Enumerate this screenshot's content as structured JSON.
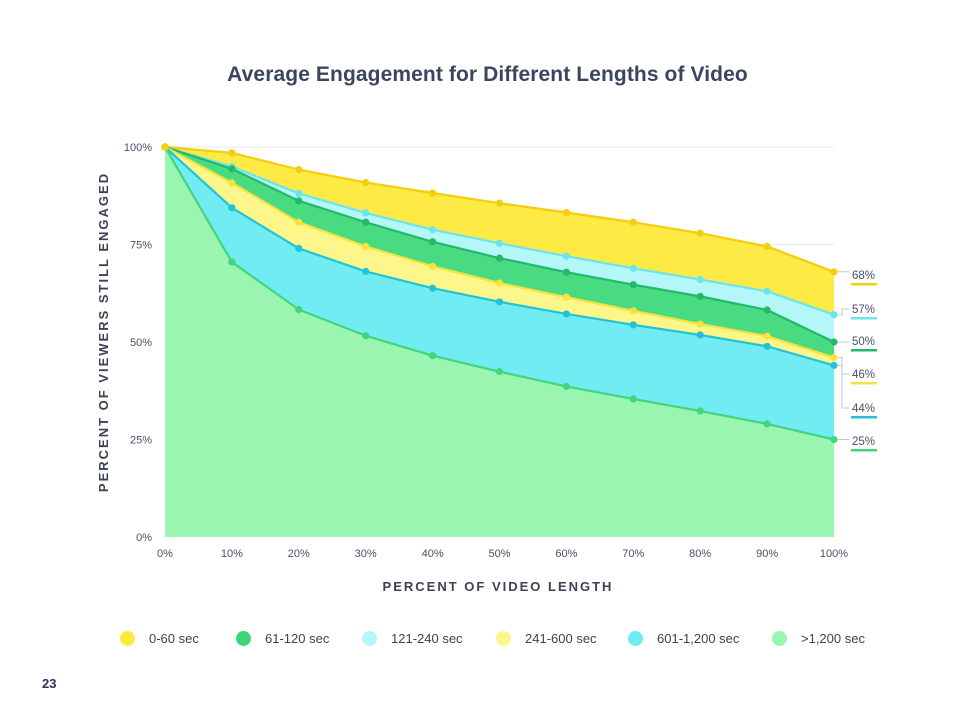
{
  "page": {
    "number": "23"
  },
  "chart_data": {
    "type": "area",
    "title": "Average Engagement for Different Lengths of Video",
    "xlabel": "PERCENT OF VIDEO LENGTH",
    "ylabel": "PERCENT OF VIEWERS STILL ENGAGED",
    "x": [
      0,
      10,
      20,
      30,
      40,
      50,
      60,
      70,
      80,
      90,
      100
    ],
    "x_tick_labels": [
      "0%",
      "10%",
      "20%",
      "30%",
      "40%",
      "50%",
      "60%",
      "70%",
      "80%",
      "90%",
      "100%"
    ],
    "y_ticks": [
      0,
      25,
      50,
      75,
      100
    ],
    "y_tick_labels": [
      "0%",
      "25%",
      "50%",
      "75%",
      "100%"
    ],
    "xlim": [
      0,
      100
    ],
    "ylim": [
      0,
      100
    ],
    "grid": true,
    "legend_position": "bottom",
    "series": [
      {
        "name": "0-60 sec",
        "fill": "#fdea45",
        "line": "#f5cd0c",
        "end_label": "68%",
        "values": [
          100,
          98.5,
          94.2,
          90.9,
          88.2,
          85.6,
          83.2,
          80.7,
          77.9,
          74.5,
          68
        ]
      },
      {
        "name": "121-240 sec",
        "fill": "#b3f7f9",
        "line": "#6ae4ef",
        "end_label": "57%",
        "values": [
          100,
          95,
          88.1,
          83.1,
          78.8,
          75.3,
          72,
          68.9,
          66,
          63,
          57
        ]
      },
      {
        "name": "61-120 sec",
        "fill": "#48db82",
        "line": "#24b868",
        "end_label": "50%",
        "values": [
          100,
          94.4,
          86.2,
          80.7,
          75.7,
          71.5,
          67.9,
          64.7,
          61.7,
          58.2,
          50
        ]
      },
      {
        "name": "241-600 sec",
        "fill": "#fdf68a",
        "line": "#f9e23c",
        "end_label": "46%",
        "values": [
          100,
          90.8,
          80.7,
          74.5,
          69.4,
          65.1,
          61.5,
          58,
          54.6,
          51.5,
          46
        ]
      },
      {
        "name": "601-1,200 sec",
        "fill": "#70ecf2",
        "line": "#22c3d8",
        "end_label": "44%",
        "values": [
          100,
          84.4,
          74,
          68.1,
          63.8,
          60.3,
          57.2,
          54.4,
          51.8,
          48.9,
          44
        ]
      },
      {
        "name": ">1,200 sec",
        "fill": "#9af5b0",
        "line": "#43d47d",
        "end_label": "25%",
        "values": [
          100,
          70.5,
          58.3,
          51.6,
          46.5,
          42.4,
          38.6,
          35.4,
          32.3,
          29,
          25
        ]
      }
    ],
    "legend": [
      {
        "name": "0-60 sec",
        "color": "#fde93f"
      },
      {
        "name": "61-120 sec",
        "color": "#3dd47a"
      },
      {
        "name": "121-240 sec",
        "color": "#b3f7f9"
      },
      {
        "name": "241-600 sec",
        "color": "#fdf68a"
      },
      {
        "name": "601-1,200 sec",
        "color": "#6eeaf2"
      },
      {
        "name": ">1,200 sec",
        "color": "#9af5b0"
      }
    ]
  }
}
